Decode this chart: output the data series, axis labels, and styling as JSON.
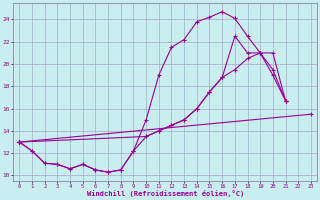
{
  "xlabel": "Windchill (Refroidissement éolien,°C)",
  "background_color": "#c8eef0",
  "grid_color": "#aaaacc",
  "line_color": "#990099",
  "line1_y": [
    13.0,
    12.2,
    11.1,
    11.0,
    10.6,
    11.0,
    10.5,
    10.3,
    10.5,
    12.2,
    15.0,
    19.0,
    21.5,
    22.2,
    23.8,
    24.2,
    24.7,
    24.1,
    22.5,
    21.0,
    19.0,
    16.7
  ],
  "line2_y": [
    13.0,
    null,
    null,
    null,
    null,
    null,
    null,
    null,
    null,
    null,
    13.5,
    14.0,
    14.5,
    15.0,
    16.0,
    17.5,
    18.8,
    22.5,
    21.0,
    21.0,
    21.0,
    16.7
  ],
  "line3_y": [
    13.0,
    12.2,
    11.1,
    11.0,
    10.6,
    11.0,
    10.5,
    10.3,
    10.5,
    12.2,
    13.5,
    14.0,
    14.5,
    15.0,
    16.0,
    17.5,
    18.8,
    19.5,
    20.5,
    21.0,
    19.5,
    16.7
  ],
  "line4_x": [
    0,
    23
  ],
  "line4_y": [
    13.0,
    15.5
  ],
  "xlim": [
    -0.5,
    23.5
  ],
  "ylim": [
    9.5,
    25.5
  ],
  "yticks": [
    10,
    12,
    14,
    16,
    18,
    20,
    22,
    24
  ],
  "xticks": [
    0,
    1,
    2,
    3,
    4,
    5,
    6,
    7,
    8,
    9,
    10,
    11,
    12,
    13,
    14,
    15,
    16,
    17,
    18,
    19,
    20,
    21,
    22,
    23
  ]
}
